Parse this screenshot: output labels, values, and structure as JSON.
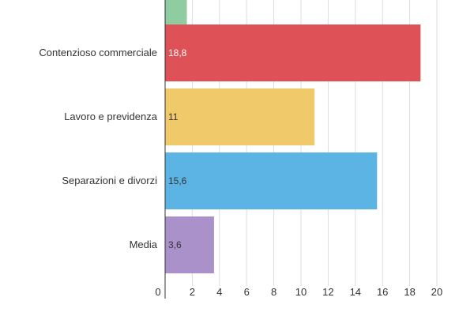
{
  "chart_data": {
    "type": "bar",
    "orientation": "horizontal",
    "categories": [
      "",
      "Contenzioso commerciale",
      "Lavoro e previdenza",
      "Separazioni e divorzi",
      "Media"
    ],
    "values": [
      1.6,
      18.8,
      11,
      15.6,
      3.6
    ],
    "value_labels": [
      "",
      "18,8",
      "11",
      "15,6",
      "3,6"
    ],
    "colors": [
      "#8fcc9f",
      "#de5257",
      "#f0c96a",
      "#5cb4e4",
      "#ab91c9"
    ],
    "value_label_colors": [
      "#ffffff",
      "#ffffff",
      "#333333",
      "#333333",
      "#333333"
    ],
    "xlim": [
      0,
      20
    ],
    "xticks": [
      0,
      2,
      4,
      6,
      8,
      10,
      12,
      14,
      16,
      18,
      20
    ],
    "grid": true,
    "title": "",
    "xlabel": "",
    "ylabel": ""
  }
}
